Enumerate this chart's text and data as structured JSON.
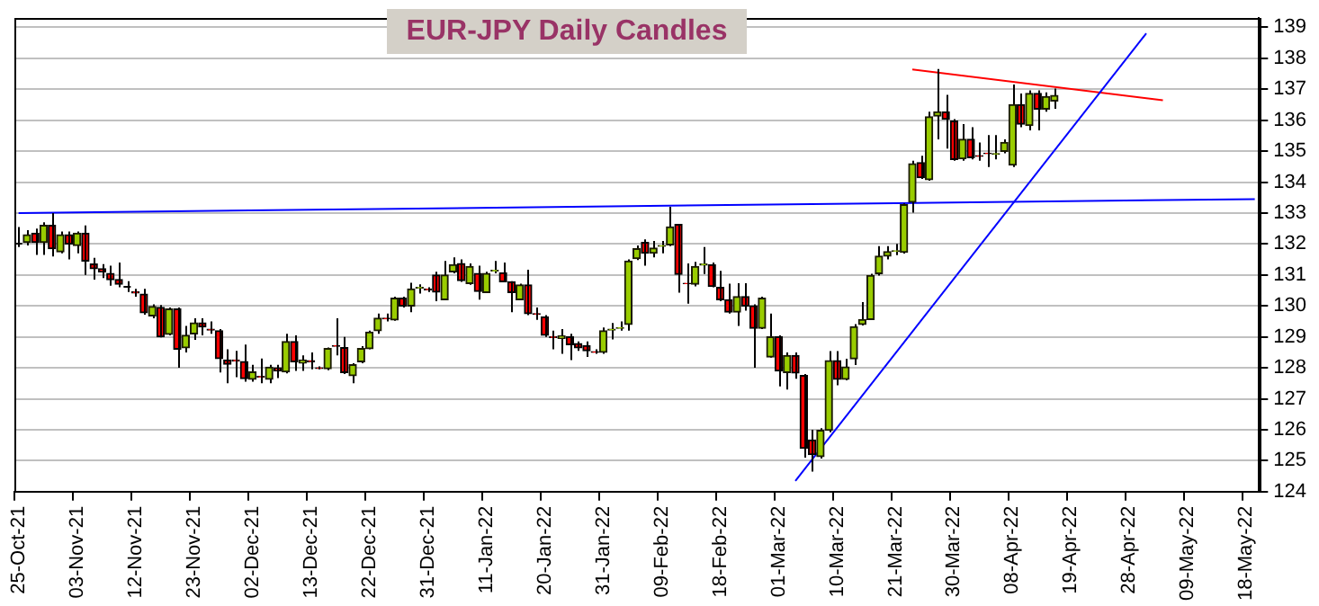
{
  "chart_data": {
    "type": "candlestick",
    "title": "EUR-JPY Daily Candles",
    "categories": [
      "25-Oct-21",
      null,
      null,
      null,
      null,
      null,
      null,
      "03-Nov-21",
      null,
      null,
      null,
      null,
      null,
      null,
      "12-Nov-21",
      null,
      null,
      null,
      null,
      null,
      null,
      "23-Nov-21",
      null,
      null,
      null,
      null,
      null,
      null,
      "02-Dec-21",
      null,
      null,
      null,
      null,
      null,
      null,
      "13-Dec-21",
      null,
      null,
      null,
      null,
      null,
      null,
      "22-Dec-21",
      null,
      null,
      null,
      null,
      null,
      null,
      "31-Dec-21",
      null,
      null,
      null,
      null,
      null,
      null,
      "11-Jan-22",
      null,
      null,
      null,
      null,
      null,
      null,
      "20-Jan-22",
      null,
      null,
      null,
      null,
      null,
      null,
      "31-Jan-22",
      null,
      null,
      null,
      null,
      null,
      null,
      "09-Feb-22",
      null,
      null,
      null,
      null,
      null,
      null,
      "18-Feb-22",
      null,
      null,
      null,
      null,
      null,
      null,
      "01-Mar-22",
      null,
      null,
      null,
      null,
      null,
      null,
      "10-Mar-22",
      null,
      null,
      null,
      null,
      null,
      null,
      "21-Mar-22",
      null,
      null,
      null,
      null,
      null,
      null,
      "30-Mar-22",
      null,
      null,
      null,
      null,
      null,
      null,
      "08-Apr-22",
      null,
      null,
      null,
      null,
      null,
      null,
      "19-Apr-22",
      null,
      null,
      null,
      null,
      null,
      null,
      "28-Apr-22",
      null,
      null,
      null,
      null,
      null,
      null,
      "09-May-22",
      null,
      null,
      null,
      null,
      null,
      null,
      "18-May-22",
      null
    ],
    "ohlc": [
      [
        132.05,
        132.55,
        131.9,
        132.05
      ],
      [
        132.05,
        132.45,
        131.95,
        132.3
      ],
      [
        132.35,
        132.5,
        131.65,
        132.05
      ],
      [
        132.05,
        132.7,
        131.65,
        132.6
      ],
      [
        132.6,
        133.0,
        131.6,
        131.85
      ],
      [
        131.75,
        132.4,
        131.7,
        132.3
      ],
      [
        132.3,
        132.4,
        131.5,
        132.0
      ],
      [
        131.95,
        132.4,
        131.7,
        132.35
      ],
      [
        132.35,
        132.6,
        131.0,
        131.45
      ],
      [
        131.35,
        131.55,
        130.85,
        131.2
      ],
      [
        131.2,
        131.35,
        130.9,
        131.1
      ],
      [
        131.05,
        131.3,
        130.65,
        130.85
      ],
      [
        130.85,
        131.4,
        130.6,
        130.7
      ],
      [
        130.62,
        130.8,
        130.45,
        130.62
      ],
      [
        130.45,
        130.55,
        130.3,
        130.42
      ],
      [
        130.38,
        130.55,
        129.72,
        129.78
      ],
      [
        129.68,
        130.05,
        129.6,
        129.98
      ],
      [
        129.95,
        130.03,
        128.98,
        129.0
      ],
      [
        129.08,
        129.95,
        129.05,
        129.9
      ],
      [
        129.9,
        129.95,
        128.0,
        128.6
      ],
      [
        128.65,
        129.35,
        128.5,
        129.05
      ],
      [
        129.1,
        129.6,
        128.9,
        129.45
      ],
      [
        129.45,
        129.6,
        129.05,
        129.32
      ],
      [
        129.25,
        129.5,
        129.1,
        129.22
      ],
      [
        129.2,
        129.25,
        127.85,
        128.3
      ],
      [
        128.25,
        128.6,
        127.5,
        128.12
      ],
      [
        128.25,
        128.55,
        127.7,
        128.22
      ],
      [
        128.2,
        128.75,
        127.55,
        127.65
      ],
      [
        127.63,
        128.1,
        127.55,
        127.87
      ],
      [
        127.72,
        128.3,
        127.5,
        127.7
      ],
      [
        127.63,
        128.1,
        127.5,
        128.02
      ],
      [
        128.0,
        128.1,
        127.67,
        127.9
      ],
      [
        127.87,
        129.1,
        127.82,
        128.85
      ],
      [
        128.85,
        129.05,
        127.9,
        128.2
      ],
      [
        128.15,
        128.4,
        127.9,
        128.25
      ],
      [
        128.23,
        128.5,
        127.95,
        128.2
      ],
      [
        128.0,
        128.05,
        127.95,
        127.98
      ],
      [
        127.97,
        128.66,
        127.92,
        128.62
      ],
      [
        128.72,
        129.6,
        128.4,
        128.7
      ],
      [
        128.65,
        129.0,
        127.8,
        127.85
      ],
      [
        127.75,
        128.15,
        127.5,
        128.1
      ],
      [
        128.2,
        128.7,
        128.15,
        128.62
      ],
      [
        128.62,
        129.2,
        128.6,
        129.15
      ],
      [
        129.2,
        129.75,
        129.1,
        129.6
      ],
      [
        129.6,
        129.75,
        129.5,
        129.58
      ],
      [
        129.55,
        130.3,
        129.52,
        130.25
      ],
      [
        130.25,
        130.3,
        129.95,
        130.0
      ],
      [
        130.0,
        130.75,
        129.8,
        130.55
      ],
      [
        130.58,
        130.7,
        130.4,
        130.6
      ],
      [
        130.55,
        130.6,
        130.45,
        130.52
      ],
      [
        131.0,
        131.1,
        130.15,
        130.45
      ],
      [
        130.2,
        131.45,
        130.18,
        131.0
      ],
      [
        131.1,
        131.57,
        131.05,
        131.33
      ],
      [
        131.37,
        131.5,
        130.78,
        130.82
      ],
      [
        130.72,
        131.37,
        130.68,
        131.27
      ],
      [
        131.05,
        131.3,
        130.2,
        130.47
      ],
      [
        130.43,
        131.1,
        130.43,
        131.05
      ],
      [
        131.13,
        131.45,
        131.05,
        131.15
      ],
      [
        131.07,
        131.4,
        130.78,
        130.78
      ],
      [
        130.78,
        130.8,
        129.8,
        130.43
      ],
      [
        130.2,
        130.72,
        130.18,
        130.68
      ],
      [
        130.68,
        131.17,
        129.7,
        129.75
      ],
      [
        129.75,
        129.95,
        129.55,
        129.73
      ],
      [
        129.65,
        129.7,
        129.0,
        129.05
      ],
      [
        129.0,
        129.2,
        128.6,
        128.98
      ],
      [
        128.95,
        129.25,
        128.45,
        129.03
      ],
      [
        129.0,
        129.1,
        128.25,
        128.75
      ],
      [
        128.78,
        128.85,
        128.55,
        128.65
      ],
      [
        128.72,
        128.85,
        128.35,
        128.55
      ],
      [
        128.52,
        128.6,
        128.45,
        128.5
      ],
      [
        128.5,
        129.3,
        128.45,
        129.2
      ],
      [
        129.22,
        129.45,
        128.92,
        129.25
      ],
      [
        129.28,
        129.5,
        129.2,
        129.3
      ],
      [
        129.4,
        131.5,
        129.2,
        131.45
      ],
      [
        131.53,
        131.95,
        131.48,
        131.85
      ],
      [
        132.05,
        132.15,
        131.3,
        131.7
      ],
      [
        131.7,
        132.1,
        131.57,
        131.87
      ],
      [
        131.93,
        132.1,
        131.7,
        131.95
      ],
      [
        131.97,
        133.2,
        131.93,
        132.55
      ],
      [
        132.63,
        132.63,
        130.43,
        131.02
      ],
      [
        130.73,
        131.37,
        130.07,
        130.72
      ],
      [
        130.7,
        131.42,
        130.63,
        131.27
      ],
      [
        131.32,
        131.9,
        131.03,
        131.35
      ],
      [
        131.33,
        131.4,
        130.6,
        130.63
      ],
      [
        130.6,
        131.13,
        130.15,
        130.2
      ],
      [
        130.2,
        130.72,
        129.75,
        129.8
      ],
      [
        129.8,
        130.73,
        129.35,
        130.3
      ],
      [
        130.3,
        130.73,
        129.85,
        130.0
      ],
      [
        130.0,
        130.05,
        128.0,
        129.28
      ],
      [
        129.28,
        130.3,
        129.25,
        130.25
      ],
      [
        128.35,
        129.75,
        128.33,
        129.0
      ],
      [
        129.0,
        129.05,
        127.4,
        127.9
      ],
      [
        127.85,
        128.5,
        127.3,
        128.4
      ],
      [
        128.4,
        128.5,
        127.65,
        127.83
      ],
      [
        127.75,
        127.8,
        125.1,
        125.4
      ],
      [
        125.67,
        126.0,
        124.65,
        125.2
      ],
      [
        125.13,
        126.05,
        125.07,
        125.98
      ],
      [
        125.98,
        128.54,
        125.92,
        128.23
      ],
      [
        128.23,
        128.54,
        127.44,
        127.63
      ],
      [
        127.63,
        128.29,
        127.6,
        128.03
      ],
      [
        128.29,
        129.41,
        128.09,
        129.33
      ],
      [
        129.4,
        130.12,
        129.37,
        129.56
      ],
      [
        129.56,
        131.04,
        129.56,
        130.98
      ],
      [
        131.04,
        131.93,
        130.98,
        131.61
      ],
      [
        131.61,
        131.93,
        131.5,
        131.75
      ],
      [
        131.77,
        132.0,
        131.64,
        131.78
      ],
      [
        131.73,
        133.31,
        131.69,
        133.27
      ],
      [
        133.35,
        134.69,
        133.01,
        134.59
      ],
      [
        134.63,
        134.85,
        134.1,
        134.14
      ],
      [
        134.08,
        136.27,
        134.04,
        136.11
      ],
      [
        136.13,
        137.65,
        135.38,
        136.27
      ],
      [
        136.27,
        136.82,
        135.08,
        136.03
      ],
      [
        135.97,
        136.03,
        134.69,
        134.73
      ],
      [
        134.75,
        135.87,
        134.69,
        135.38
      ],
      [
        135.38,
        135.77,
        134.73,
        134.79
      ],
      [
        134.85,
        135.28,
        134.69,
        134.83
      ],
      [
        134.93,
        135.52,
        134.49,
        134.92
      ],
      [
        134.9,
        135.52,
        134.73,
        134.92
      ],
      [
        134.99,
        135.38,
        134.93,
        135.28
      ],
      [
        134.55,
        137.15,
        134.49,
        136.5
      ],
      [
        136.5,
        136.86,
        135.77,
        135.87
      ],
      [
        135.83,
        136.96,
        135.67,
        136.86
      ],
      [
        136.86,
        136.96,
        135.67,
        136.36
      ],
      [
        136.36,
        136.9,
        136.27,
        136.76
      ],
      [
        136.62,
        137.02,
        136.37,
        136.8
      ],
      null,
      null,
      null,
      null,
      null,
      null,
      null,
      null,
      null,
      null,
      null,
      null,
      null,
      null,
      null,
      null,
      null,
      null,
      null,
      null,
      null,
      null,
      null,
      null
    ],
    "series": [
      {
        "type": "line",
        "color": "#0000ff",
        "values": [
          133.0,
          null,
          null,
          null,
          null,
          null,
          null,
          null,
          null,
          null,
          null,
          null,
          null,
          null,
          null,
          null,
          null,
          null,
          null,
          null,
          null,
          null,
          null,
          null,
          null,
          null,
          null,
          null,
          null,
          null,
          null,
          null,
          null,
          null,
          null,
          null,
          null,
          null,
          null,
          null,
          null,
          null,
          null,
          null,
          null,
          null,
          null,
          null,
          null,
          null,
          null,
          null,
          null,
          null,
          null,
          null,
          null,
          null,
          null,
          null,
          null,
          null,
          null,
          null,
          null,
          null,
          null,
          null,
          null,
          null,
          null,
          null,
          null,
          null,
          null,
          null,
          null,
          null,
          null,
          null,
          null,
          null,
          null,
          null,
          null,
          null,
          null,
          null,
          null,
          null,
          null,
          null,
          null,
          null,
          null,
          null,
          null,
          null,
          null,
          null,
          null,
          null,
          null,
          null,
          null,
          null,
          null,
          null,
          null,
          null,
          null,
          null,
          null,
          null,
          null,
          null,
          null,
          null,
          null,
          null,
          null,
          null,
          null,
          null,
          null,
          null,
          null,
          null,
          null,
          null,
          null,
          null,
          null,
          null,
          null,
          null,
          null,
          null,
          null,
          null,
          null,
          null,
          null,
          null,
          null,
          null,
          null,
          null,
          133.45
        ]
      },
      {
        "type": "line",
        "color": "#0000ff",
        "values": [
          null,
          null,
          null,
          null,
          null,
          null,
          null,
          null,
          null,
          null,
          null,
          null,
          null,
          null,
          null,
          null,
          null,
          null,
          null,
          null,
          null,
          null,
          null,
          null,
          null,
          null,
          null,
          null,
          null,
          null,
          null,
          null,
          null,
          null,
          null,
          null,
          null,
          null,
          null,
          null,
          null,
          null,
          null,
          null,
          null,
          null,
          null,
          null,
          null,
          null,
          null,
          null,
          null,
          null,
          null,
          null,
          null,
          null,
          null,
          null,
          null,
          null,
          null,
          null,
          null,
          null,
          null,
          null,
          null,
          null,
          null,
          null,
          null,
          null,
          null,
          null,
          null,
          null,
          null,
          null,
          null,
          null,
          null,
          null,
          null,
          null,
          null,
          null,
          null,
          null,
          null,
          null,
          null,
          124.35,
          null,
          null,
          null,
          null,
          null,
          null,
          null,
          null,
          null,
          null,
          null,
          null,
          null,
          null,
          null,
          null,
          null,
          null,
          null,
          null,
          null,
          null,
          null,
          null,
          null,
          null,
          null,
          null,
          null,
          null,
          null,
          null,
          null,
          null,
          null,
          null,
          null,
          null,
          null,
          null,
          null,
          138.8,
          null,
          null,
          null,
          null,
          null,
          null,
          null,
          null,
          null,
          null,
          null,
          null,
          null
        ]
      },
      {
        "type": "line",
        "color": "#ff0000",
        "values": [
          null,
          null,
          null,
          null,
          null,
          null,
          null,
          null,
          null,
          null,
          null,
          null,
          null,
          null,
          null,
          null,
          null,
          null,
          null,
          null,
          null,
          null,
          null,
          null,
          null,
          null,
          null,
          null,
          null,
          null,
          null,
          null,
          null,
          null,
          null,
          null,
          null,
          null,
          null,
          null,
          null,
          null,
          null,
          null,
          null,
          null,
          null,
          null,
          null,
          null,
          null,
          null,
          null,
          null,
          null,
          null,
          null,
          null,
          null,
          null,
          null,
          null,
          null,
          null,
          null,
          null,
          null,
          null,
          null,
          null,
          null,
          null,
          null,
          null,
          null,
          null,
          null,
          null,
          null,
          null,
          null,
          null,
          null,
          null,
          null,
          null,
          null,
          null,
          null,
          null,
          null,
          null,
          null,
          null,
          null,
          null,
          null,
          null,
          null,
          null,
          null,
          null,
          null,
          null,
          null,
          null,
          null,
          137.64,
          null,
          null,
          null,
          null,
          null,
          null,
          null,
          null,
          null,
          null,
          null,
          null,
          null,
          null,
          null,
          null,
          null,
          null,
          null,
          null,
          null,
          null,
          null,
          null,
          null,
          null,
          null,
          null,
          null,
          136.64,
          null,
          null,
          null,
          null,
          null,
          null,
          null,
          null,
          null,
          null,
          null
        ]
      }
    ],
    "ylim": [
      124,
      139.3
    ],
    "yticks": [
      124,
      125,
      126,
      127,
      128,
      129,
      130,
      131,
      132,
      133,
      134,
      135,
      136,
      137,
      138,
      139
    ],
    "grid": "y"
  }
}
